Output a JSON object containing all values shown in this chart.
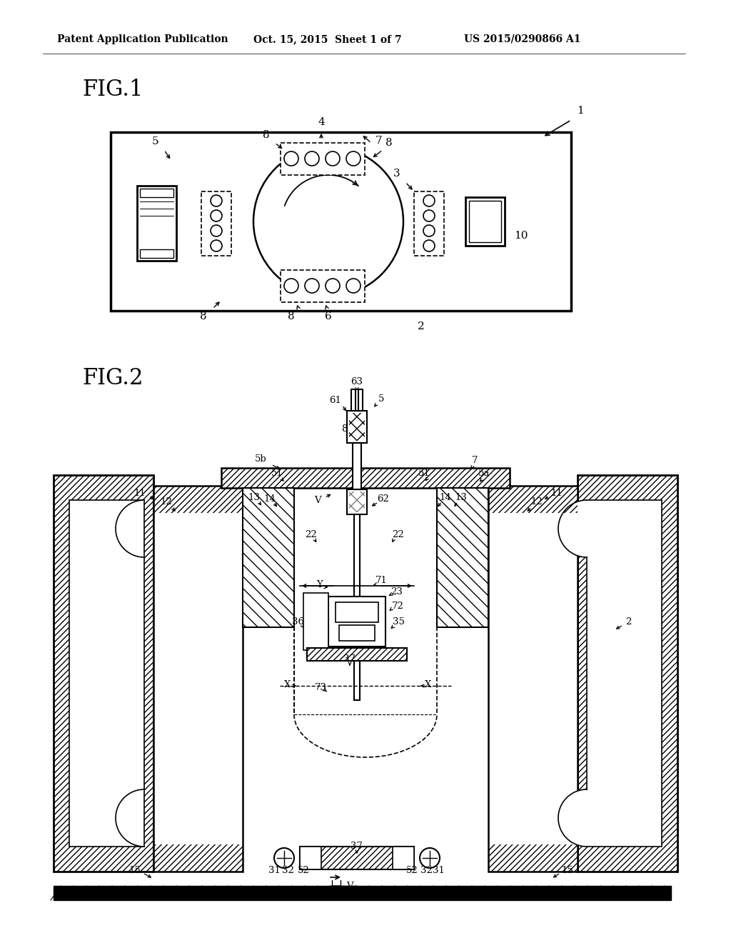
{
  "bg_color": "#ffffff",
  "header_left": "Patent Application Publication",
  "header_mid": "Oct. 15, 2015  Sheet 1 of 7",
  "header_right": "US 2015/0290866 A1",
  "fig1_label": "FIG.1",
  "fig2_label": "FIG.2"
}
